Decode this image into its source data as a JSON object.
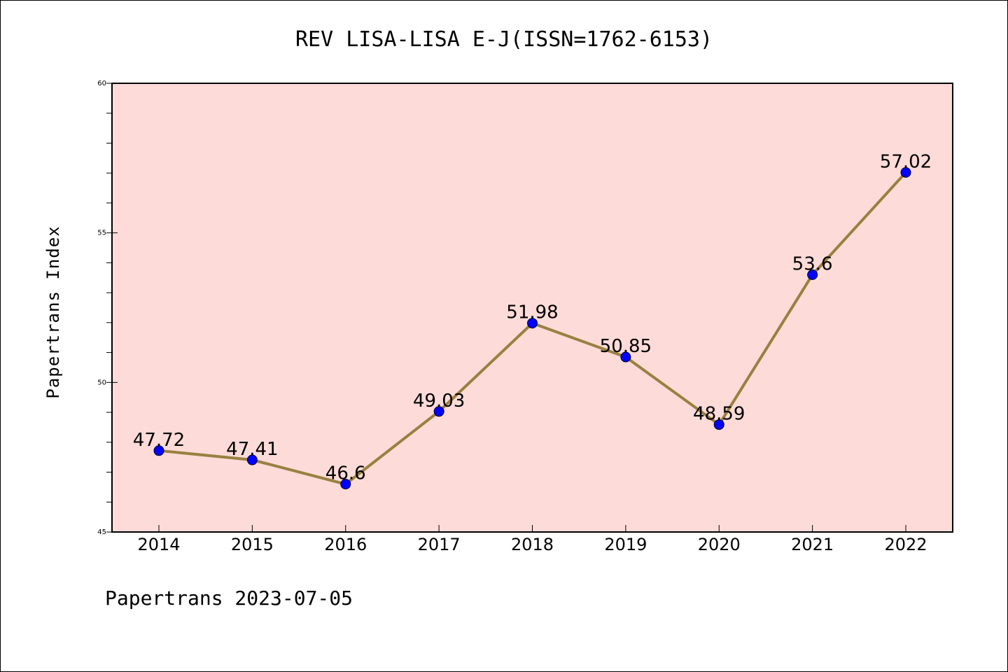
{
  "chart_data": {
    "type": "line",
    "title": "REV LISA-LISA E-J(ISSN=1762-6153)",
    "ylabel": "Papertrans Index",
    "xlabel": "",
    "footer": "Papertrans 2023-07-05",
    "x": [
      "2014",
      "2015",
      "2016",
      "2017",
      "2018",
      "2019",
      "2020",
      "2021",
      "2022"
    ],
    "values": [
      47.72,
      47.41,
      46.6,
      49.03,
      51.98,
      50.85,
      48.59,
      53.6,
      57.02
    ],
    "data_labels": [
      "47.72",
      "47.41",
      "46.6",
      "49.03",
      "51.98",
      "50.85",
      "48.59",
      "53.6",
      "57.02"
    ],
    "ylim": [
      45,
      60
    ],
    "yticks": [
      45,
      50,
      55,
      60
    ],
    "grid": false,
    "colors": {
      "plot_background": "#fddbd8",
      "line": "#9a8040",
      "marker": "#0000ff"
    }
  }
}
